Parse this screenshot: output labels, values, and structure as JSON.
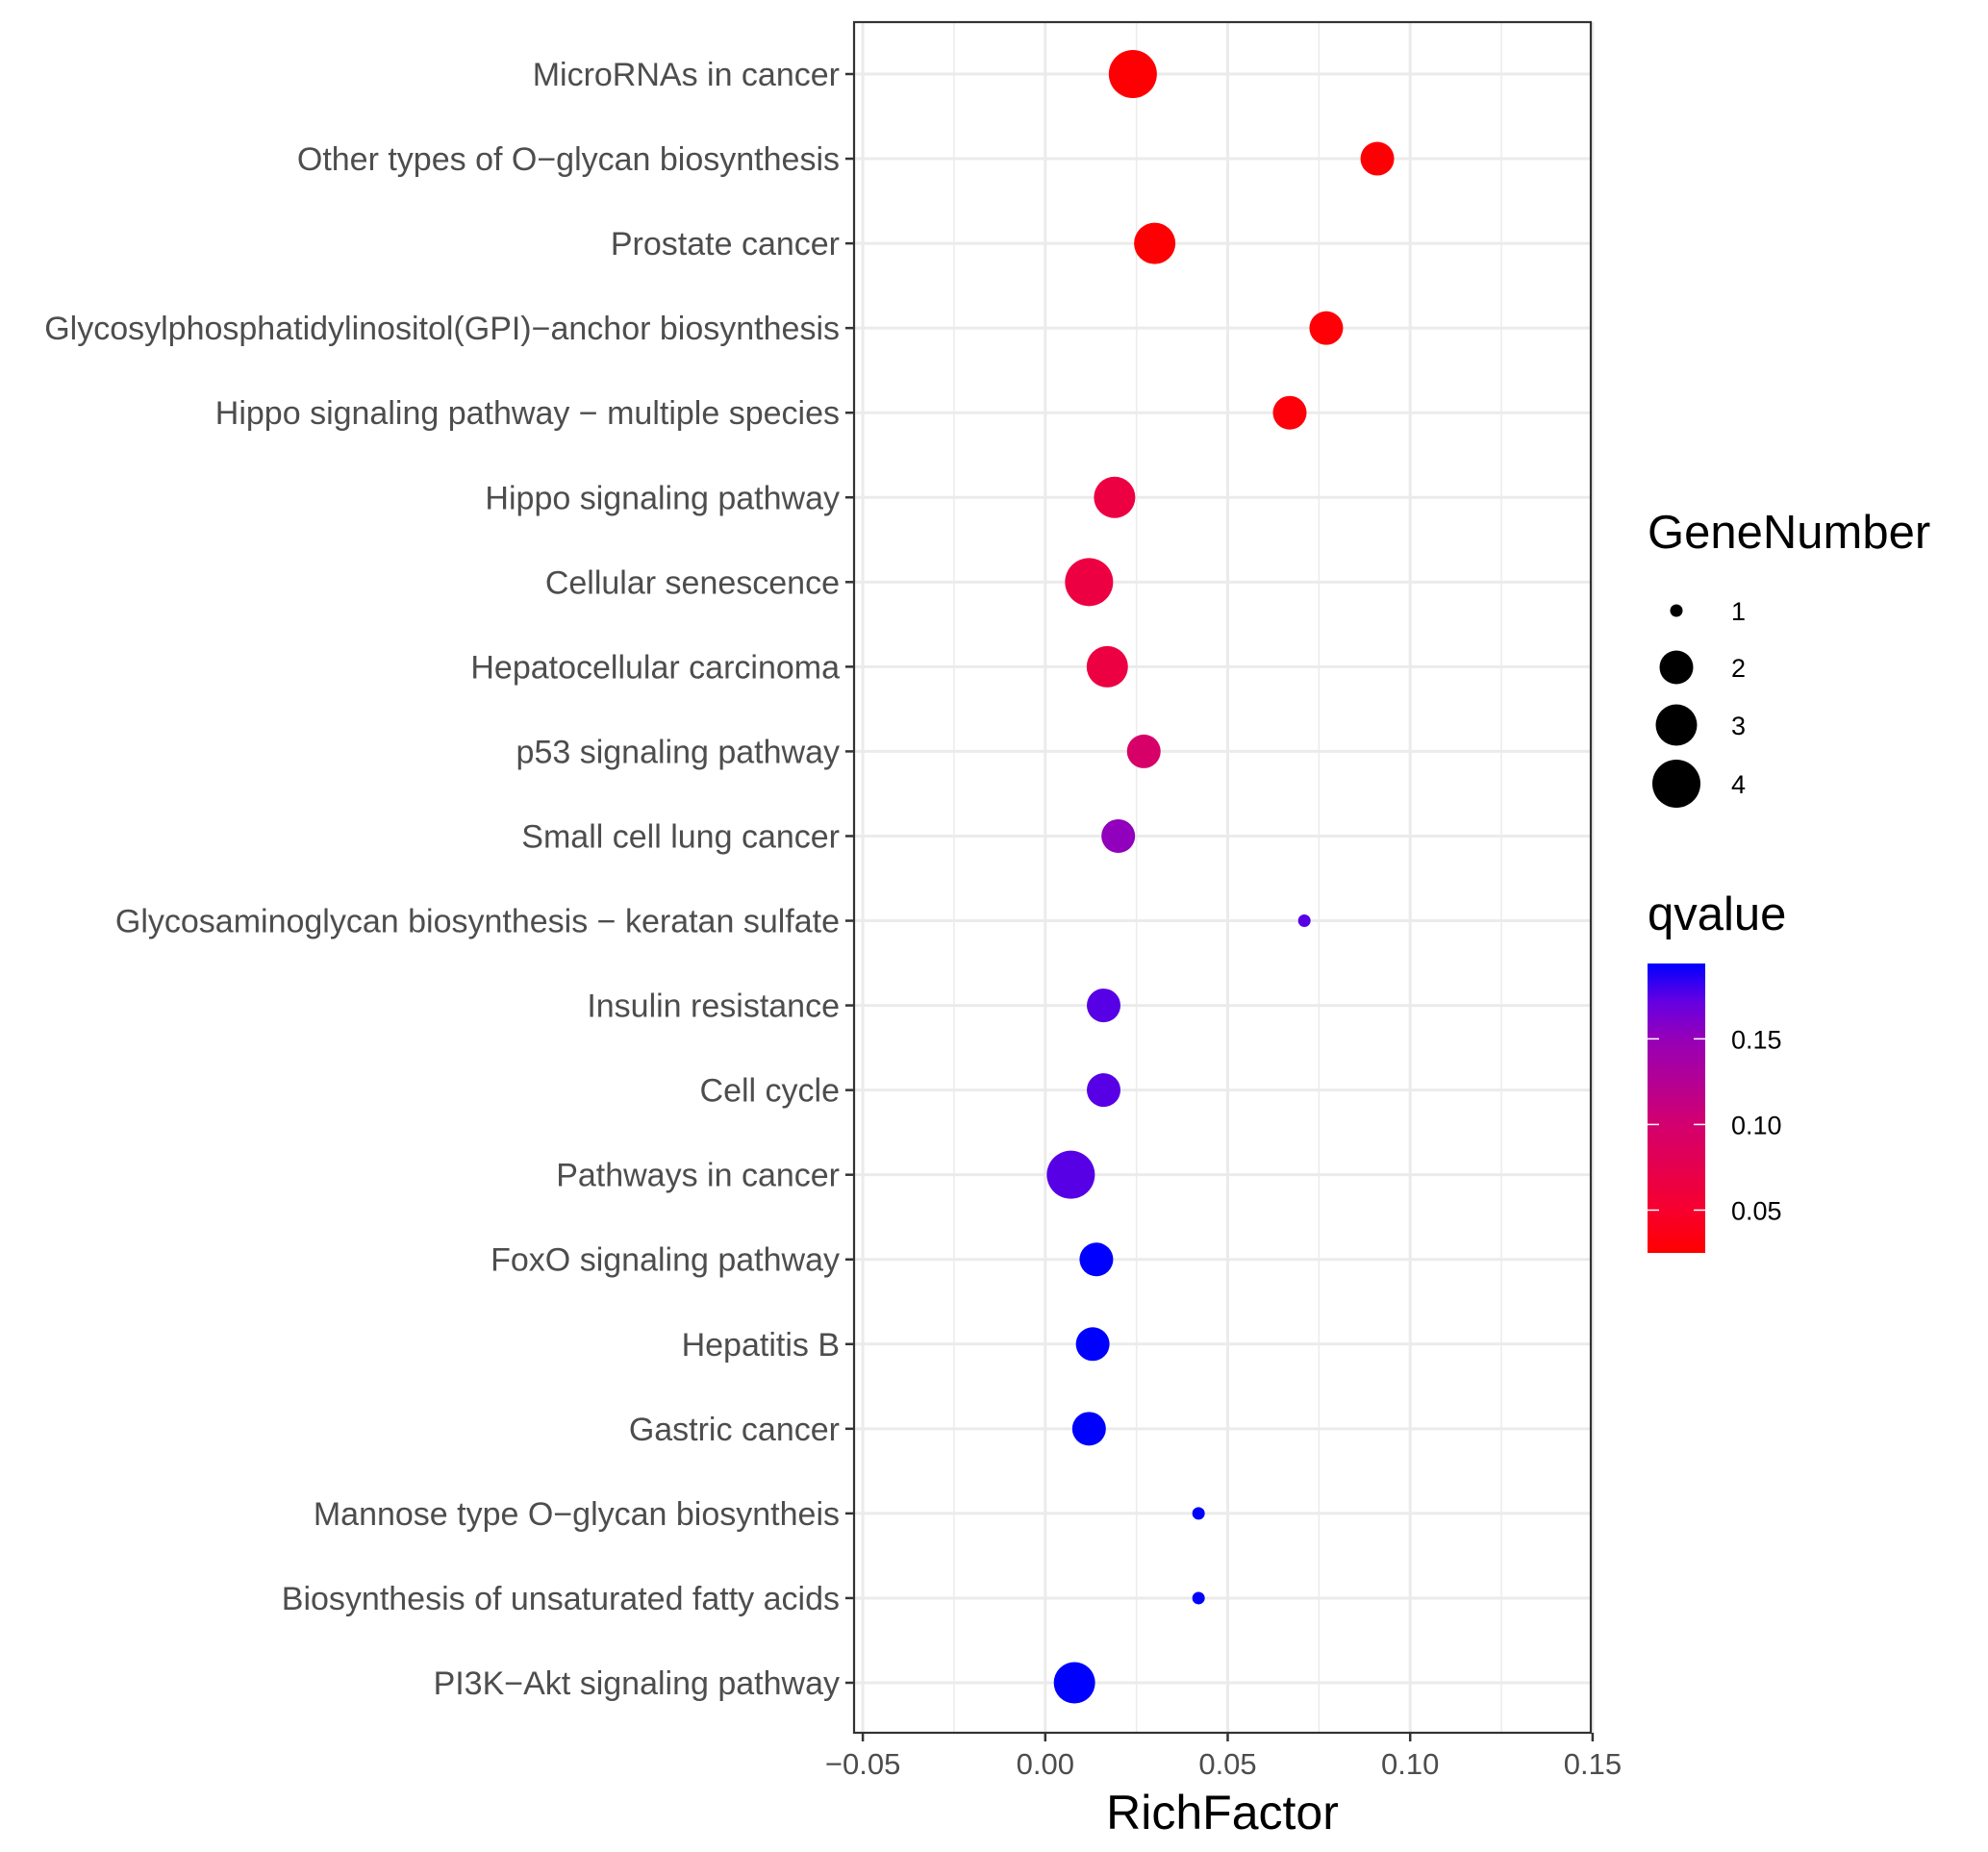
{
  "chart_data": {
    "type": "scatter",
    "title": "",
    "xlabel": "RichFactor",
    "ylabel": "",
    "xlim": [
      -0.0524,
      0.1495
    ],
    "x_ticks": [
      -0.05,
      0.0,
      0.05,
      0.1,
      0.15
    ],
    "x_tick_labels": [
      "−0.05",
      "0.00",
      "0.05",
      "0.10",
      "0.15"
    ],
    "grid": true,
    "categories": [
      "MicroRNAs in cancer",
      "Other types of O−glycan biosynthesis",
      "Prostate cancer",
      "Glycosylphosphatidylinositol(GPI)−anchor biosynthesis",
      "Hippo signaling pathway − multiple species",
      "Hippo signaling pathway",
      "Cellular senescence",
      "Hepatocellular carcinoma",
      "p53 signaling pathway",
      "Small cell lung cancer",
      "Glycosaminoglycan biosynthesis − keratan sulfate",
      "Insulin resistance",
      "Cell cycle",
      "Pathways in cancer",
      "FoxO signaling pathway",
      "Hepatitis B",
      "Gastric cancer",
      "Mannose type O−glycan biosyntheis",
      "Biosynthesis of unsaturated fatty acids",
      "PI3K−Akt signaling pathway"
    ],
    "points": [
      {
        "term": "MicroRNAs in cancer",
        "rich_factor": 0.024,
        "gene_number": 4,
        "qvalue": 0.027
      },
      {
        "term": "Other types of O−glycan biosynthesis",
        "rich_factor": 0.091,
        "gene_number": 2,
        "qvalue": 0.027
      },
      {
        "term": "Prostate cancer",
        "rich_factor": 0.03,
        "gene_number": 3,
        "qvalue": 0.027
      },
      {
        "term": "Glycosylphosphatidylinositol(GPI)−anchor biosynthesis",
        "rich_factor": 0.077,
        "gene_number": 2,
        "qvalue": 0.028
      },
      {
        "term": "Hippo signaling pathway − multiple species",
        "rich_factor": 0.067,
        "gene_number": 2,
        "qvalue": 0.03
      },
      {
        "term": "Hippo signaling pathway",
        "rich_factor": 0.019,
        "gene_number": 3,
        "qvalue": 0.065
      },
      {
        "term": "Cellular senescence",
        "rich_factor": 0.012,
        "gene_number": 4,
        "qvalue": 0.065
      },
      {
        "term": "Hepatocellular carcinoma",
        "rich_factor": 0.017,
        "gene_number": 3,
        "qvalue": 0.065
      },
      {
        "term": "p53 signaling pathway",
        "rich_factor": 0.027,
        "gene_number": 2,
        "qvalue": 0.095
      },
      {
        "term": "Small cell lung cancer",
        "rich_factor": 0.02,
        "gene_number": 2,
        "qvalue": 0.152
      },
      {
        "term": "Glycosaminoglycan biosynthesis − keratan sulfate",
        "rich_factor": 0.071,
        "gene_number": 1,
        "qvalue": 0.175
      },
      {
        "term": "Insulin resistance",
        "rich_factor": 0.016,
        "gene_number": 2,
        "qvalue": 0.175
      },
      {
        "term": "Cell cycle",
        "rich_factor": 0.016,
        "gene_number": 2,
        "qvalue": 0.175
      },
      {
        "term": "Pathways in cancer",
        "rich_factor": 0.007,
        "gene_number": 4,
        "qvalue": 0.175
      },
      {
        "term": "FoxO signaling pathway",
        "rich_factor": 0.014,
        "gene_number": 2,
        "qvalue": 0.194
      },
      {
        "term": "Hepatitis B",
        "rich_factor": 0.013,
        "gene_number": 2,
        "qvalue": 0.194
      },
      {
        "term": "Gastric cancer",
        "rich_factor": 0.012,
        "gene_number": 2,
        "qvalue": 0.194
      },
      {
        "term": "Mannose type O−glycan biosyntheis",
        "rich_factor": 0.042,
        "gene_number": 1,
        "qvalue": 0.194
      },
      {
        "term": "Biosynthesis of unsaturated fatty acids",
        "rich_factor": 0.042,
        "gene_number": 1,
        "qvalue": 0.194
      },
      {
        "term": "PI3K−Akt signaling pathway",
        "rich_factor": 0.008,
        "gene_number": 3,
        "qvalue": 0.194
      }
    ],
    "size_legend": {
      "title": "GeneNumber",
      "values": [
        1,
        2,
        3,
        4
      ],
      "labels": [
        "1",
        "2",
        "3",
        "4"
      ]
    },
    "color_legend": {
      "title": "qvalue",
      "range": [
        0.025,
        0.194
      ],
      "low_color": "#ff0000",
      "high_color": "#0000ff",
      "ticks": [
        0.05,
        0.1,
        0.15
      ],
      "tick_labels": [
        "0.05",
        "0.10",
        "0.15"
      ]
    },
    "legend_position": "right"
  }
}
